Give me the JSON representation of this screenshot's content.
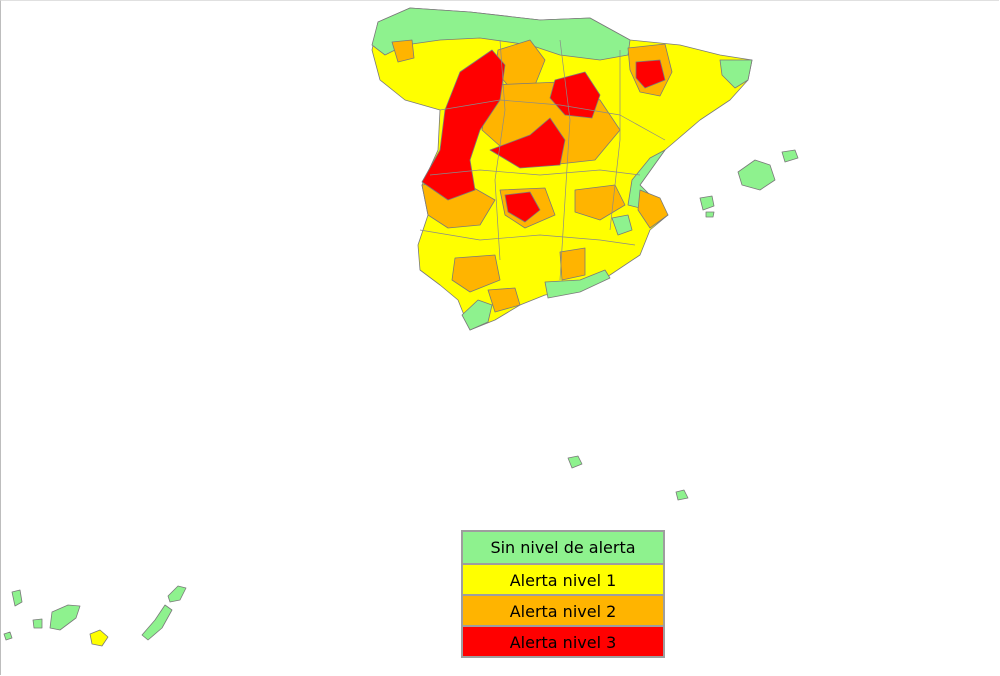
{
  "colors": {
    "none": "#8ef28e",
    "level1": "#ffff00",
    "level2": "#ffb400",
    "level3": "#ff0000"
  },
  "legend": {
    "items": [
      {
        "label": "Sin nivel de alerta",
        "color": "#8ef28e"
      },
      {
        "label": "Alerta nivel 1",
        "color": "#ffff00"
      },
      {
        "label": "Alerta nivel 2",
        "color": "#ffb400"
      },
      {
        "label": "Alerta nivel 3",
        "color": "#ff0000"
      }
    ]
  }
}
